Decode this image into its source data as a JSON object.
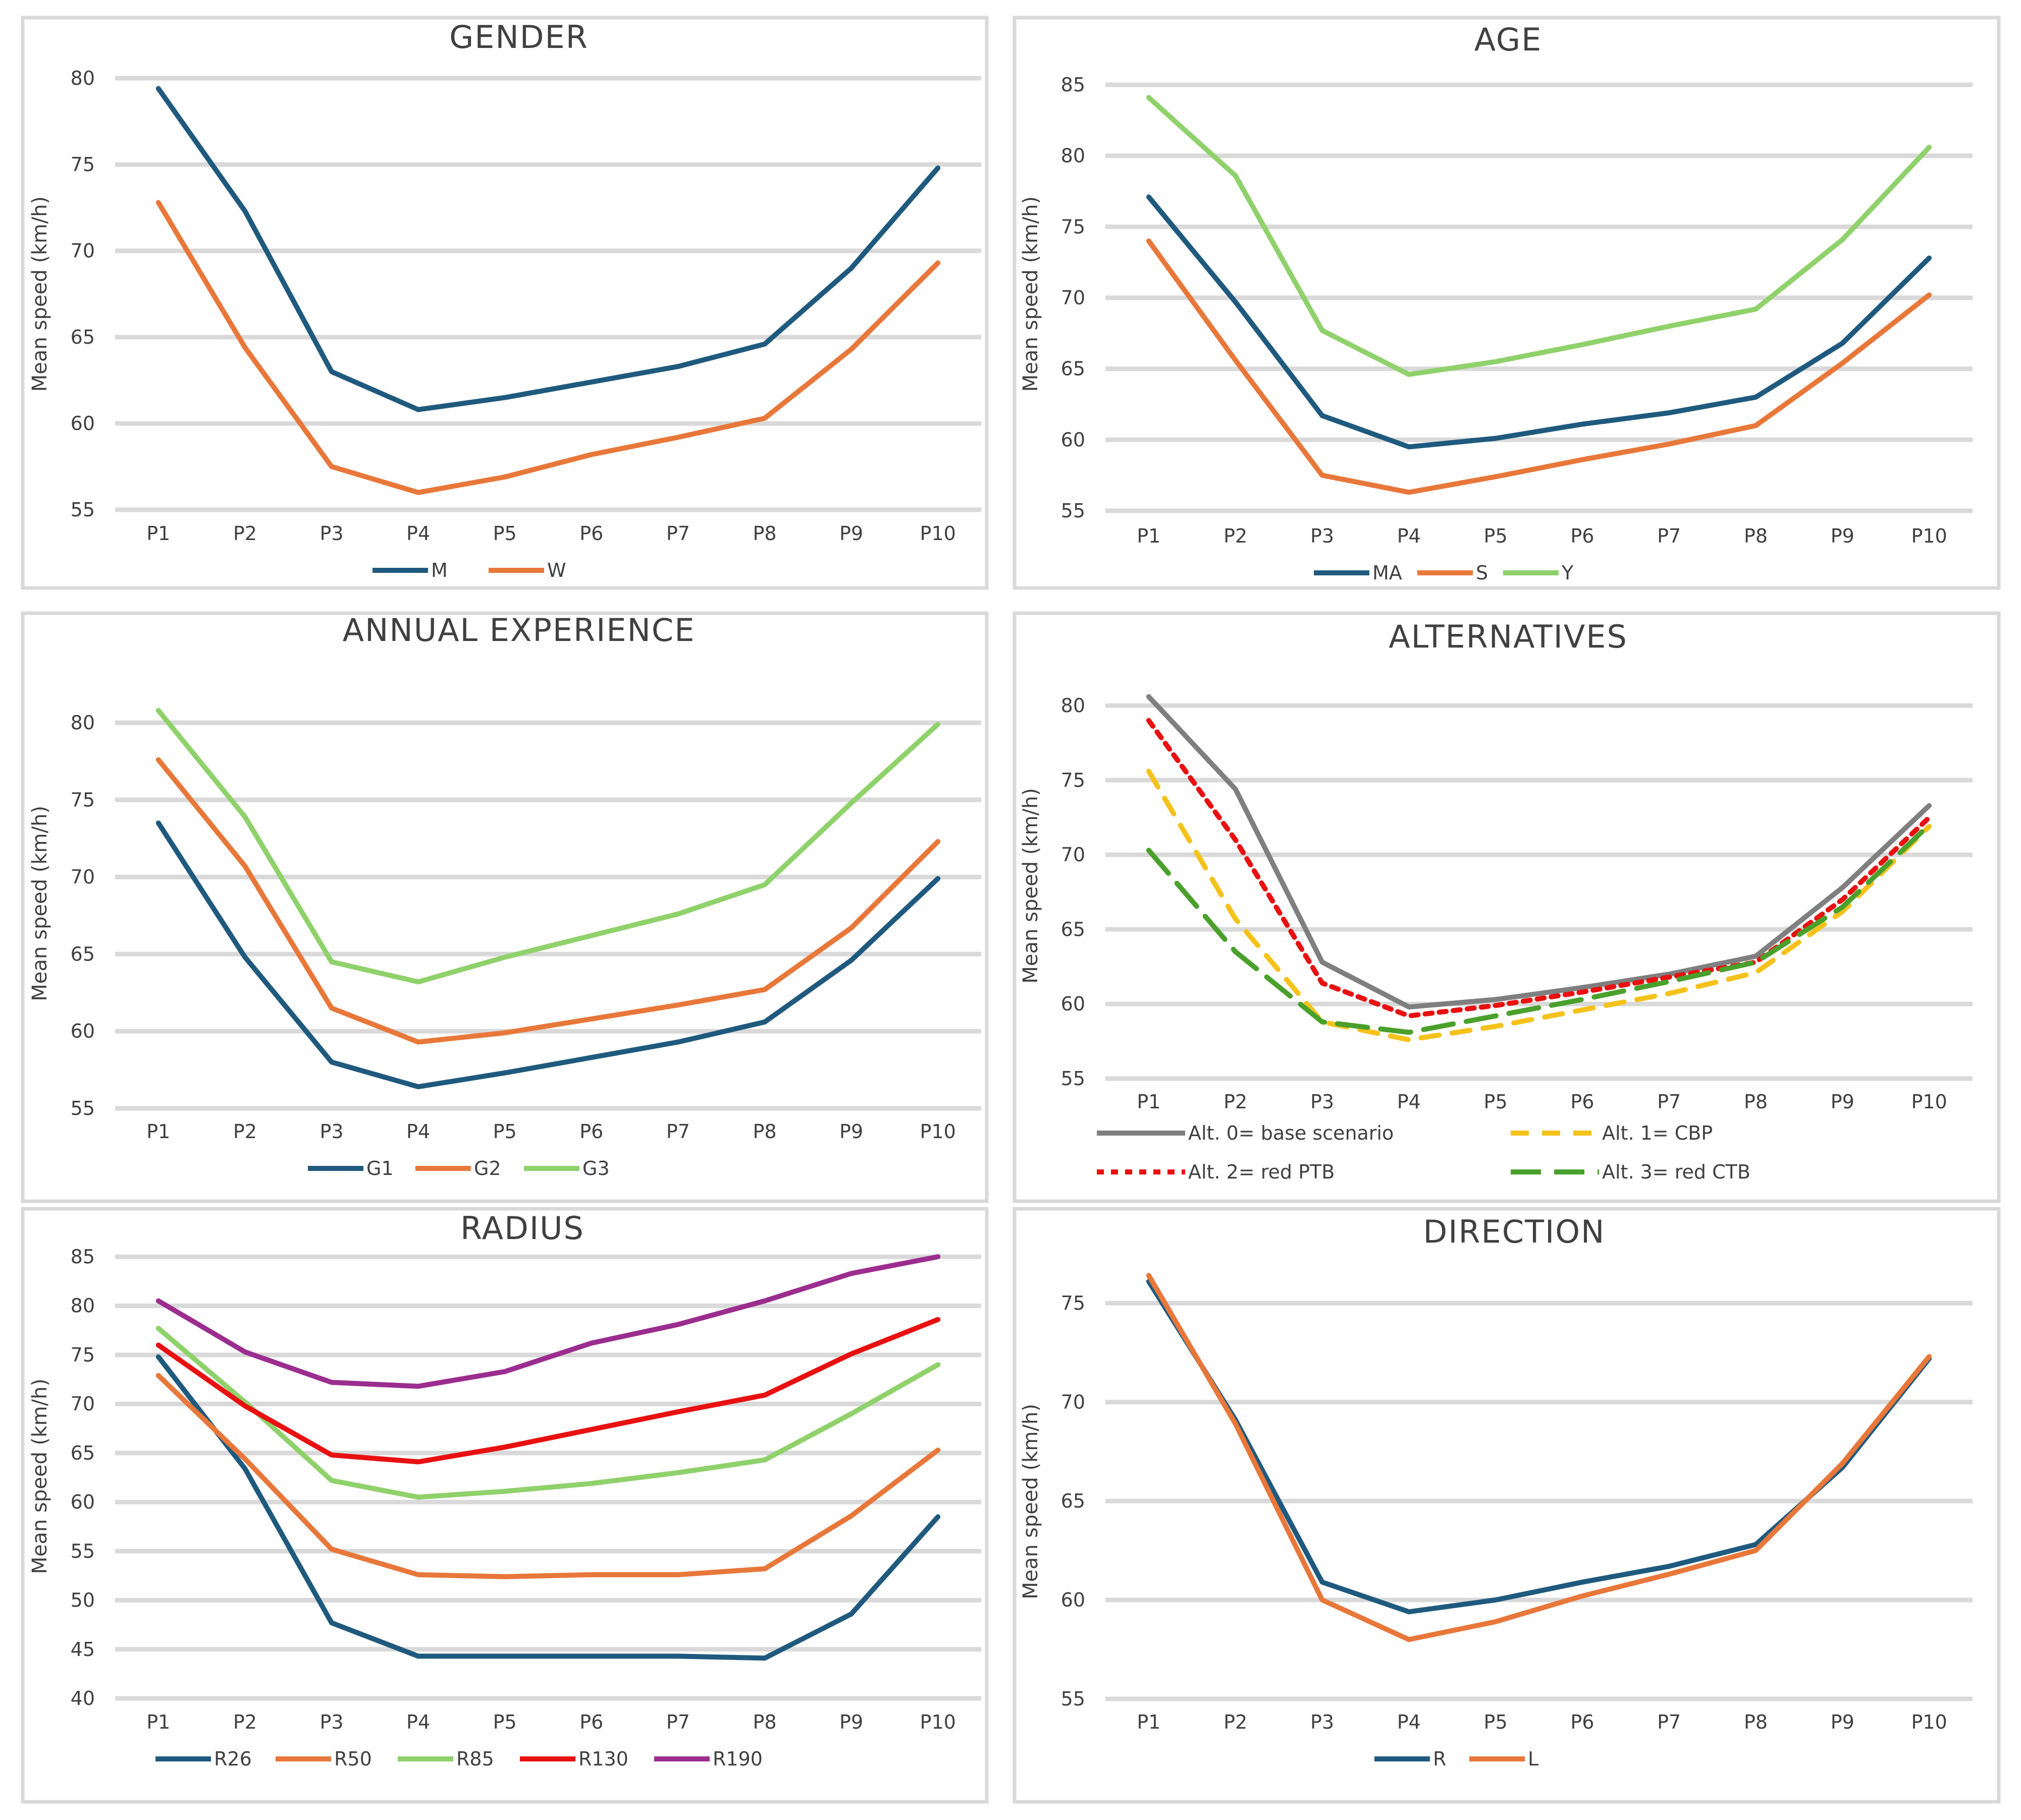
{
  "chart_data": [
    {
      "id": "gender",
      "type": "line",
      "title": "GENDER",
      "ylabel": "Mean speed  (km/h)",
      "ylim": [
        55,
        80
      ],
      "yticks": [
        55,
        60,
        65,
        70,
        75,
        80
      ],
      "categories": [
        "P1",
        "P2",
        "P3",
        "P4",
        "P5",
        "P6",
        "P7",
        "P8",
        "P9",
        "P10"
      ],
      "series": [
        {
          "name": "M",
          "color": "#1f5a7e",
          "dash": "solid",
          "values": [
            79.4,
            72.3,
            63.0,
            60.8,
            61.5,
            62.4,
            63.3,
            64.6,
            69.0,
            74.8
          ]
        },
        {
          "name": "W",
          "color": "#e8773a",
          "dash": "solid",
          "values": [
            72.8,
            64.4,
            57.5,
            56.0,
            56.9,
            58.2,
            59.2,
            60.3,
            64.3,
            69.3
          ]
        }
      ]
    },
    {
      "id": "age",
      "type": "line",
      "title": "AGE",
      "ylabel": "Mean speed  (km/h)",
      "ylim": [
        55,
        85
      ],
      "yticks": [
        55,
        60,
        65,
        70,
        75,
        80,
        85
      ],
      "categories": [
        "P1",
        "P2",
        "P3",
        "P4",
        "P5",
        "P6",
        "P7",
        "P8",
        "P9",
        "P10"
      ],
      "series": [
        {
          "name": "MA",
          "color": "#1f5a7e",
          "dash": "solid",
          "values": [
            77.1,
            69.7,
            61.7,
            59.5,
            60.1,
            61.1,
            61.9,
            63.0,
            66.8,
            72.8
          ]
        },
        {
          "name": "S",
          "color": "#e8773a",
          "dash": "solid",
          "values": [
            74.0,
            65.6,
            57.5,
            56.3,
            57.4,
            58.6,
            59.7,
            61.0,
            65.4,
            70.2
          ]
        },
        {
          "name": "Y",
          "color": "#8fd16b",
          "dash": "solid",
          "values": [
            84.1,
            78.6,
            67.7,
            64.6,
            65.5,
            66.7,
            68.0,
            69.2,
            74.1,
            80.6
          ]
        }
      ]
    },
    {
      "id": "experience",
      "type": "line",
      "title": "ANNUAL EXPERIENCE",
      "ylabel": "Mean speed (km/h)",
      "ylim": [
        55,
        80
      ],
      "yticks": [
        55,
        60,
        65,
        70,
        75,
        80
      ],
      "categories": [
        "P1",
        "P2",
        "P3",
        "P4",
        "P5",
        "P6",
        "P7",
        "P8",
        "P9",
        "P10"
      ],
      "series": [
        {
          "name": "G1",
          "color": "#1f5a7e",
          "dash": "solid",
          "values": [
            73.5,
            64.8,
            58.0,
            56.4,
            57.3,
            58.3,
            59.3,
            60.6,
            64.6,
            69.9
          ]
        },
        {
          "name": "G2",
          "color": "#e8773a",
          "dash": "solid",
          "values": [
            77.6,
            70.7,
            61.5,
            59.3,
            59.9,
            60.8,
            61.7,
            62.7,
            66.7,
            72.3
          ]
        },
        {
          "name": "G3",
          "color": "#8fd16b",
          "dash": "solid",
          "values": [
            80.8,
            73.9,
            64.5,
            63.2,
            64.8,
            66.2,
            67.6,
            69.5,
            74.8,
            79.9
          ]
        }
      ]
    },
    {
      "id": "alternatives",
      "type": "line",
      "title": "ALTERNATIVES",
      "ylabel": "Mean speed (km/h)",
      "ylim": [
        55,
        80
      ],
      "yticks": [
        55,
        60,
        65,
        70,
        75,
        80
      ],
      "categories": [
        "P1",
        "P2",
        "P3",
        "P4",
        "P5",
        "P6",
        "P7",
        "P8",
        "P9",
        "P10"
      ],
      "series": [
        {
          "name": "Alt. 0= base scenario",
          "color": "#7f7f7f",
          "dash": "solid",
          "values": [
            80.6,
            74.4,
            62.8,
            59.8,
            60.3,
            61.1,
            62.0,
            63.2,
            67.8,
            73.3
          ]
        },
        {
          "name": "Alt. 1= CBP",
          "color": "#f5c21b",
          "dash": "dashed",
          "values": [
            75.6,
            65.7,
            58.8,
            57.6,
            58.5,
            59.6,
            60.7,
            62.1,
            66.2,
            71.9
          ]
        },
        {
          "name": "Alt. 2= red PTB",
          "color": "#e81010",
          "dash": "dotted",
          "values": [
            79.0,
            71.0,
            61.4,
            59.2,
            59.9,
            60.8,
            61.8,
            62.8,
            67.0,
            72.5
          ]
        },
        {
          "name": "Alt. 3= red CTB",
          "color": "#4aa02c",
          "dash": "longdash",
          "values": [
            70.3,
            63.5,
            58.8,
            58.1,
            59.2,
            60.3,
            61.5,
            62.8,
            66.5,
            72.0
          ]
        }
      ]
    },
    {
      "id": "radius",
      "type": "line",
      "title": "RADIUS",
      "ylabel": "Mean speed (km/h)",
      "ylim": [
        40,
        85
      ],
      "yticks": [
        40,
        45,
        50,
        55,
        60,
        65,
        70,
        75,
        80,
        85
      ],
      "categories": [
        "P1",
        "P2",
        "P3",
        "P4",
        "P5",
        "P6",
        "P7",
        "P8",
        "P9",
        "P10"
      ],
      "series": [
        {
          "name": "R26",
          "color": "#1f5a7e",
          "dash": "solid",
          "values": [
            74.8,
            63.4,
            47.7,
            44.3,
            44.3,
            44.3,
            44.3,
            44.1,
            48.6,
            58.5
          ]
        },
        {
          "name": "R50",
          "color": "#e8773a",
          "dash": "solid",
          "values": [
            72.9,
            64.4,
            55.2,
            52.6,
            52.4,
            52.6,
            52.6,
            53.2,
            58.6,
            65.3
          ]
        },
        {
          "name": "R85",
          "color": "#8fd16b",
          "dash": "solid",
          "values": [
            77.7,
            70.2,
            62.2,
            60.5,
            61.1,
            61.9,
            63.0,
            64.3,
            69.0,
            74.0
          ]
        },
        {
          "name": "R130",
          "color": "#e81010",
          "dash": "solid",
          "values": [
            76.0,
            69.8,
            64.8,
            64.1,
            65.6,
            67.4,
            69.2,
            70.9,
            75.1,
            78.6
          ]
        },
        {
          "name": "R190",
          "color": "#9b2d8f",
          "dash": "solid",
          "values": [
            80.5,
            75.3,
            72.2,
            71.8,
            73.3,
            76.2,
            78.1,
            80.5,
            83.3,
            85.0
          ]
        }
      ]
    },
    {
      "id": "direction",
      "type": "line",
      "title": "DIRECTION",
      "ylabel": "Mean speed (km/h)",
      "ylim": [
        55,
        75
      ],
      "yticks": [
        55,
        60,
        65,
        70,
        75
      ],
      "categories": [
        "P1",
        "P2",
        "P3",
        "P4",
        "P5",
        "P6",
        "P7",
        "P8",
        "P9",
        "P10"
      ],
      "series": [
        {
          "name": "R",
          "color": "#1f5a7e",
          "dash": "solid",
          "values": [
            76.1,
            69.1,
            60.9,
            59.4,
            60.0,
            60.9,
            61.7,
            62.8,
            66.7,
            72.2
          ]
        },
        {
          "name": "L",
          "color": "#e8773a",
          "dash": "solid",
          "values": [
            76.4,
            68.9,
            60.0,
            58.0,
            58.9,
            60.2,
            61.3,
            62.5,
            66.9,
            72.3
          ]
        }
      ]
    }
  ]
}
